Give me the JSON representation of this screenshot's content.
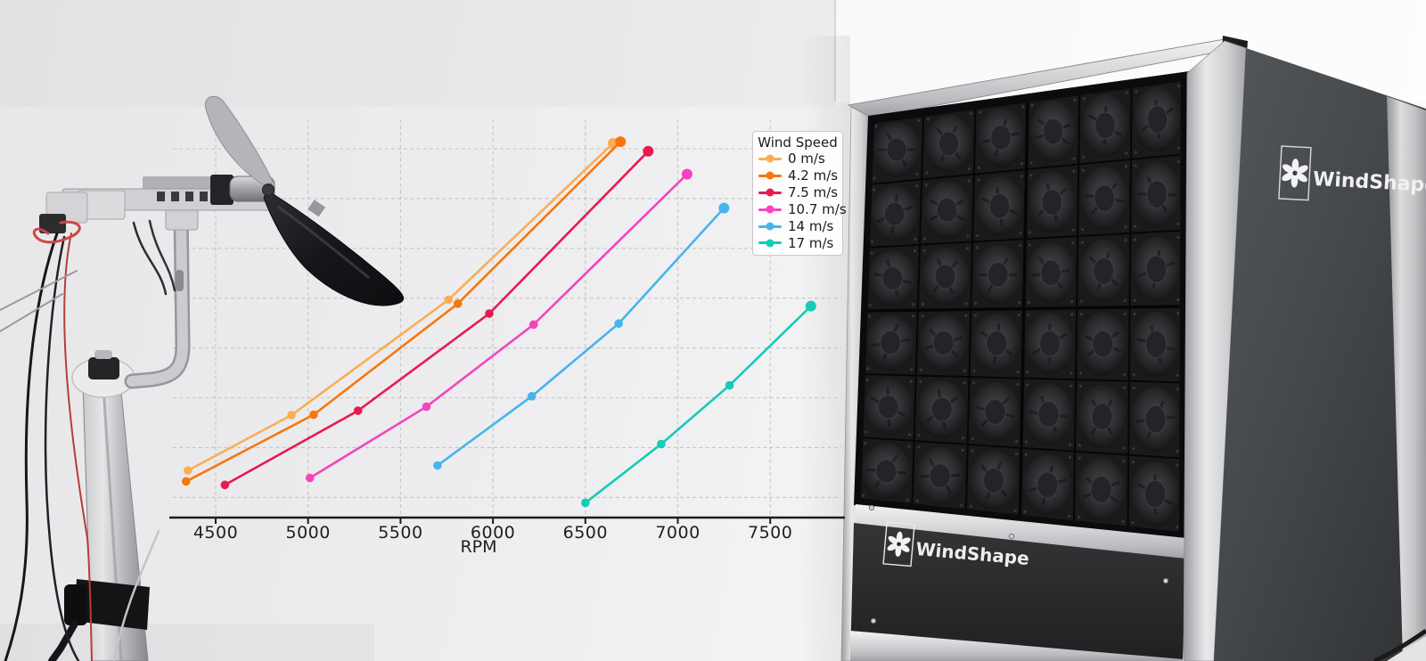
{
  "scene": {
    "windshape_side_label": "WindShape",
    "windshape_front_label": "WindShape"
  },
  "chart_data": {
    "type": "line",
    "title": "",
    "xlabel": "RPM",
    "ylabel": "",
    "x_ticks": [
      4500,
      5000,
      5500,
      6000,
      6500,
      7000,
      7500
    ],
    "x_tick_labels": [
      "4500",
      "5000",
      "5500",
      "6000",
      "6500",
      "7000",
      "7500"
    ],
    "xlim": [
      4250,
      7910
    ],
    "ylim": [
      0.6,
      8.6
    ],
    "y_axis_note": "y-axis tick labels not visible in image (hidden behind photo); y values given in horizontal-gridline units, gridlines at integers 1-8",
    "grid": true,
    "grid_style": "dashed",
    "legend_title": "Wind Speed",
    "legend_position": "upper right",
    "series": [
      {
        "name": "0 m/s",
        "color": "#FBAD55",
        "points": [
          [
            4350,
            1.54
          ],
          [
            4910,
            2.65
          ],
          [
            5760,
            4.97
          ],
          [
            6650,
            8.11
          ]
        ]
      },
      {
        "name": "4.2 m/s",
        "color": "#F8760C",
        "points": [
          [
            4340,
            1.32
          ],
          [
            5030,
            2.66
          ],
          [
            5810,
            4.89
          ],
          [
            6690,
            8.14
          ]
        ]
      },
      {
        "name": "7.5 m/s",
        "color": "#E91A4F",
        "points": [
          [
            4550,
            1.25
          ],
          [
            5270,
            2.74
          ],
          [
            5980,
            4.69
          ],
          [
            6840,
            7.95
          ]
        ]
      },
      {
        "name": "10.7 m/s",
        "color": "#F544BD",
        "points": [
          [
            5010,
            1.39
          ],
          [
            5640,
            2.82
          ],
          [
            6220,
            4.47
          ],
          [
            7050,
            7.49
          ]
        ]
      },
      {
        "name": "14 m/s",
        "color": "#47B4EC",
        "points": [
          [
            5700,
            1.64
          ],
          [
            6210,
            3.03
          ],
          [
            6680,
            4.49
          ],
          [
            7250,
            6.81
          ]
        ]
      },
      {
        "name": "17 m/s",
        "color": "#15CBB6",
        "points": [
          [
            6500,
            0.89
          ],
          [
            6910,
            2.07
          ],
          [
            7280,
            3.25
          ],
          [
            7720,
            4.84
          ]
        ]
      }
    ]
  }
}
